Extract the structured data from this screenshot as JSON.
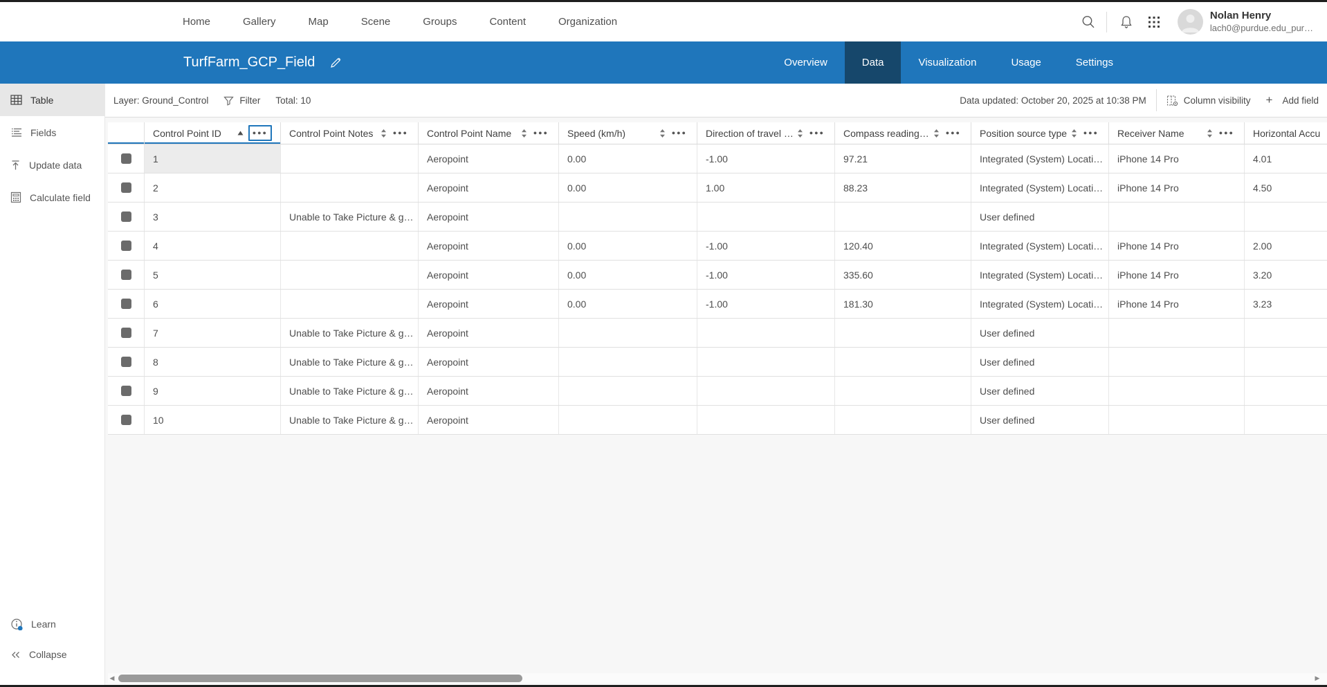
{
  "topnav": {
    "items": [
      "Home",
      "Gallery",
      "Map",
      "Scene",
      "Groups",
      "Content",
      "Organization"
    ],
    "user": {
      "name": "Nolan Henry",
      "email": "lach0@purdue.edu_pur…"
    }
  },
  "header": {
    "title": "TurfFarm_GCP_Field",
    "tabs": [
      {
        "label": "Overview"
      },
      {
        "label": "Data"
      },
      {
        "label": "Visualization"
      },
      {
        "label": "Usage"
      },
      {
        "label": "Settings"
      }
    ],
    "active_tab": "Data"
  },
  "sidebar": {
    "items": [
      {
        "label": "Table"
      },
      {
        "label": "Fields"
      },
      {
        "label": "Update data"
      },
      {
        "label": "Calculate field"
      }
    ],
    "active_item": "Table",
    "footer": [
      {
        "label": "Learn"
      },
      {
        "label": "Collapse"
      }
    ]
  },
  "toolbar": {
    "layer_label": "Layer: Ground_Control",
    "filter_label": "Filter",
    "total_label": "Total: 10",
    "updated_label": "Data updated: October 20, 2025 at 10:38 PM",
    "column_visibility_label": "Column visibility",
    "add_field_label": "Add field"
  },
  "table": {
    "columns": [
      {
        "key": "id",
        "label": "Control Point ID",
        "sort": "asc",
        "menu_focused": true
      },
      {
        "key": "notes",
        "label": "Control Point Notes",
        "sort": "both"
      },
      {
        "key": "name",
        "label": "Control Point Name",
        "sort": "both"
      },
      {
        "key": "speed",
        "label": "Speed (km/h)",
        "sort": "both"
      },
      {
        "key": "direction",
        "label": "Direction of travel (°)",
        "sort": "both"
      },
      {
        "key": "compass",
        "label": "Compass reading (°)",
        "sort": "both"
      },
      {
        "key": "source",
        "label": "Position source type",
        "sort": "both"
      },
      {
        "key": "receiver",
        "label": "Receiver Name",
        "sort": "both"
      },
      {
        "key": "haccuracy",
        "label": "Horizontal Accu",
        "sort": null
      }
    ],
    "rows": [
      {
        "id": "1",
        "notes": "",
        "name": "Aeropoint",
        "speed": "0.00",
        "direction": "-1.00",
        "compass": "97.21",
        "source": "Integrated (System) Locati…",
        "receiver": "iPhone 14 Pro",
        "haccuracy": "4.01"
      },
      {
        "id": "2",
        "notes": "",
        "name": "Aeropoint",
        "speed": "0.00",
        "direction": "1.00",
        "compass": "88.23",
        "source": "Integrated (System) Locati…",
        "receiver": "iPhone 14 Pro",
        "haccuracy": "4.50"
      },
      {
        "id": "3",
        "notes": "Unable to Take Picture & g…",
        "name": "Aeropoint",
        "speed": "",
        "direction": "",
        "compass": "",
        "source": "User defined",
        "receiver": "",
        "haccuracy": ""
      },
      {
        "id": "4",
        "notes": "",
        "name": "Aeropoint",
        "speed": "0.00",
        "direction": "-1.00",
        "compass": "120.40",
        "source": "Integrated (System) Locati…",
        "receiver": "iPhone 14 Pro",
        "haccuracy": "2.00"
      },
      {
        "id": "5",
        "notes": "",
        "name": "Aeropoint",
        "speed": "0.00",
        "direction": "-1.00",
        "compass": "335.60",
        "source": "Integrated (System) Locati…",
        "receiver": "iPhone 14 Pro",
        "haccuracy": "3.20"
      },
      {
        "id": "6",
        "notes": "",
        "name": "Aeropoint",
        "speed": "0.00",
        "direction": "-1.00",
        "compass": "181.30",
        "source": "Integrated (System) Locati…",
        "receiver": "iPhone 14 Pro",
        "haccuracy": "3.23"
      },
      {
        "id": "7",
        "notes": "Unable to Take Picture & g…",
        "name": "Aeropoint",
        "speed": "",
        "direction": "",
        "compass": "",
        "source": "User defined",
        "receiver": "",
        "haccuracy": ""
      },
      {
        "id": "8",
        "notes": "Unable to Take Picture & g…",
        "name": "Aeropoint",
        "speed": "",
        "direction": "",
        "compass": "",
        "source": "User defined",
        "receiver": "",
        "haccuracy": ""
      },
      {
        "id": "9",
        "notes": "Unable to Take Picture & g…",
        "name": "Aeropoint",
        "speed": "",
        "direction": "",
        "compass": "",
        "source": "User defined",
        "receiver": "",
        "haccuracy": ""
      },
      {
        "id": "10",
        "notes": "Unable to Take Picture & g…",
        "name": "Aeropoint",
        "speed": "",
        "direction": "",
        "compass": "",
        "source": "User defined",
        "receiver": "",
        "haccuracy": ""
      }
    ],
    "focused_cell": {
      "row": 0,
      "key": "id"
    }
  },
  "colors": {
    "accent": "#1f76bb",
    "tab_active": "#16476b",
    "checkbox": "#6b6b6b"
  }
}
